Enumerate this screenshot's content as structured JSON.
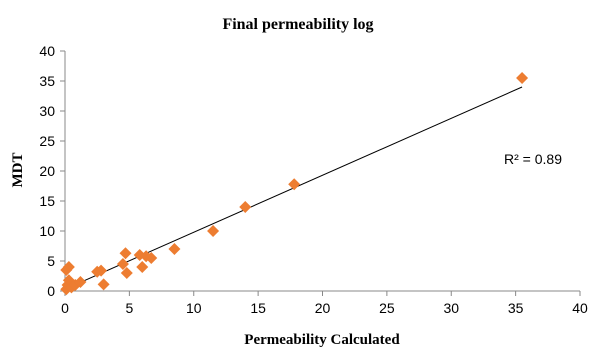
{
  "chart_data": {
    "type": "scatter",
    "title": "Final permeability log",
    "xlabel": "Permeability Calculated",
    "ylabel": "MDT",
    "xlim": [
      0,
      40
    ],
    "ylim": [
      0,
      40
    ],
    "xticks": [
      "0",
      "5",
      "10",
      "15",
      "20",
      "25",
      "30",
      "35",
      "40"
    ],
    "yticks": [
      "0",
      "5",
      "10",
      "15",
      "20",
      "25",
      "30",
      "35",
      "40"
    ],
    "grid": false,
    "marker": "diamond",
    "marker_color": "#ED7D31",
    "trendline_color": "#000000",
    "annotation": "R² = 0.89",
    "trendline": {
      "x": [
        0,
        35.5
      ],
      "y": [
        0.3,
        34
      ]
    },
    "points": [
      {
        "x": 0.1,
        "y": 0.3
      },
      {
        "x": 0.2,
        "y": 1.0
      },
      {
        "x": 0.3,
        "y": 1.8
      },
      {
        "x": 0.1,
        "y": 3.5
      },
      {
        "x": 0.3,
        "y": 4.0
      },
      {
        "x": 0.5,
        "y": 0.6
      },
      {
        "x": 0.8,
        "y": 1.0
      },
      {
        "x": 1.2,
        "y": 1.5
      },
      {
        "x": 2.5,
        "y": 3.2
      },
      {
        "x": 2.8,
        "y": 3.4
      },
      {
        "x": 3.0,
        "y": 1.1
      },
      {
        "x": 4.5,
        "y": 4.5
      },
      {
        "x": 4.7,
        "y": 6.3
      },
      {
        "x": 4.8,
        "y": 3.0
      },
      {
        "x": 5.8,
        "y": 6.0
      },
      {
        "x": 6.0,
        "y": 4.0
      },
      {
        "x": 6.3,
        "y": 5.8
      },
      {
        "x": 6.7,
        "y": 5.5
      },
      {
        "x": 8.5,
        "y": 7.0
      },
      {
        "x": 11.5,
        "y": 10.0
      },
      {
        "x": 14.0,
        "y": 14.0
      },
      {
        "x": 17.8,
        "y": 17.8
      },
      {
        "x": 35.5,
        "y": 35.5
      }
    ]
  }
}
